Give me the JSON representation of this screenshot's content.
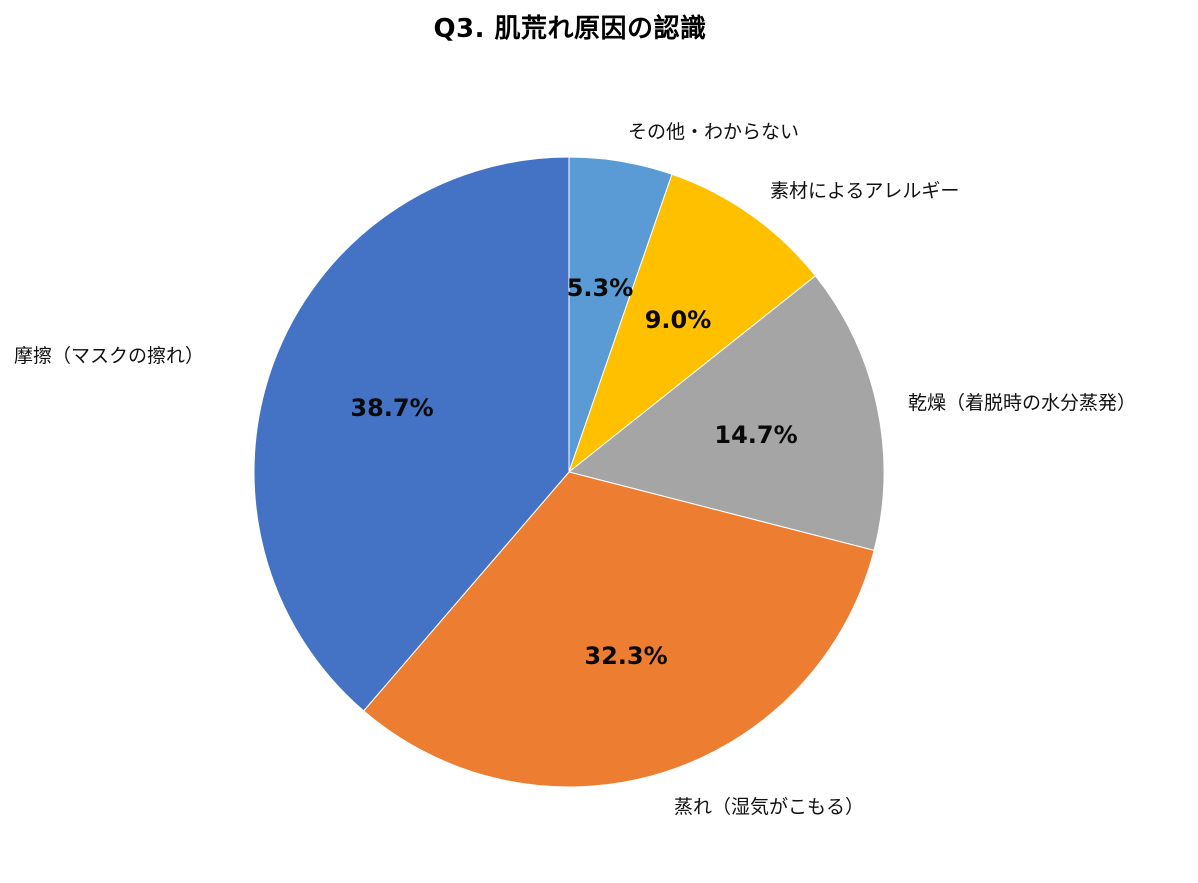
{
  "chart_data": {
    "type": "pie",
    "title": "Q3. 肌荒れ原因の認識",
    "start_angle": "12 o'clock, clockwise",
    "slices": [
      {
        "label": "その他・わからない",
        "value": 5.3,
        "display": "5.3%",
        "color": "#5B9BD5"
      },
      {
        "label": "素材によるアレルギー",
        "value": 9.0,
        "display": "9.0%",
        "color": "#FFC000"
      },
      {
        "label": "乾燥（着脱時の水分蒸発）",
        "value": 14.7,
        "display": "14.7%",
        "color": "#A5A5A5"
      },
      {
        "label": "蒸れ（湿気がこもる）",
        "value": 32.3,
        "display": "32.3%",
        "color": "#ED7D31"
      },
      {
        "label": "摩擦（マスクの擦れ）",
        "value": 38.7,
        "display": "38.7%",
        "color": "#4472C4"
      }
    ],
    "categories": [
      "その他・わからない",
      "素材によるアレルギー",
      "乾燥（着脱時の水分蒸発）",
      "蒸れ（湿気がこもる）",
      "摩擦（マスクの擦れ）"
    ],
    "values": [
      5.3,
      9.0,
      14.7,
      32.3,
      38.7
    ],
    "unit": "%",
    "legend": "none (category labels placed outside slices)"
  }
}
